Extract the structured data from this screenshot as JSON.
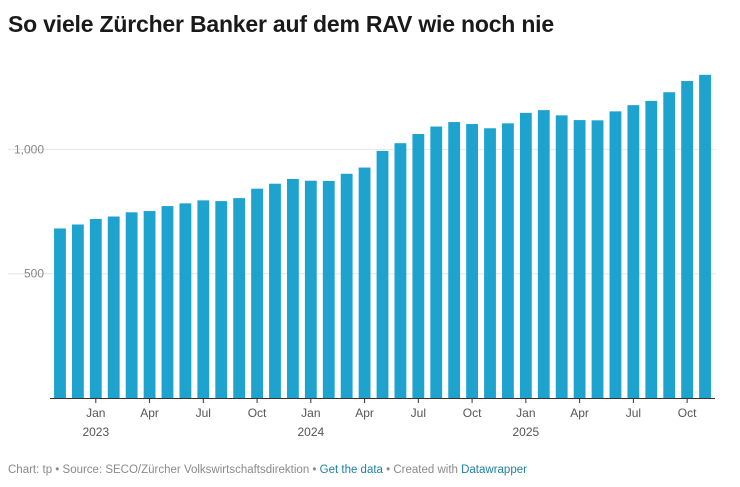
{
  "header": {
    "title": "So viele Zürcher Banker auf dem RAV wie noch nie"
  },
  "colors": {
    "bar": "#1ea3cf",
    "grid": "#e6e6e6",
    "baseline": "#333333",
    "link": "#1d81a2"
  },
  "chart_data": {
    "type": "bar",
    "title": "So viele Zürcher Banker auf dem RAV wie noch nie",
    "xlabel": "",
    "ylabel": "",
    "ylim": [
      0,
      1320
    ],
    "y_ticks": [
      {
        "value": 500,
        "label": "500"
      },
      {
        "value": 1000,
        "label": "1,000"
      }
    ],
    "x_ticks": [
      {
        "index": 2,
        "month": "Jan",
        "year": "2023"
      },
      {
        "index": 5,
        "month": "Apr",
        "year": ""
      },
      {
        "index": 8,
        "month": "Jul",
        "year": ""
      },
      {
        "index": 11,
        "month": "Oct",
        "year": ""
      },
      {
        "index": 14,
        "month": "Jan",
        "year": "2024"
      },
      {
        "index": 17,
        "month": "Apr",
        "year": ""
      },
      {
        "index": 20,
        "month": "Jul",
        "year": ""
      },
      {
        "index": 23,
        "month": "Oct",
        "year": ""
      },
      {
        "index": 26,
        "month": "Jan",
        "year": "2025"
      },
      {
        "index": 29,
        "month": "Apr",
        "year": ""
      },
      {
        "index": 32,
        "month": "Jul",
        "year": ""
      },
      {
        "index": 35,
        "month": "Oct",
        "year": ""
      }
    ],
    "categories": [
      "Nov 2022",
      "Dec 2022",
      "Jan 2023",
      "Feb 2023",
      "Mar 2023",
      "Apr 2023",
      "May 2023",
      "Jun 2023",
      "Jul 2023",
      "Aug 2023",
      "Sep 2023",
      "Oct 2023",
      "Nov 2023",
      "Dec 2023",
      "Jan 2024",
      "Feb 2024",
      "Mar 2024",
      "Apr 2024",
      "May 2024",
      "Jun 2024",
      "Jul 2024",
      "Aug 2024",
      "Sep 2024",
      "Oct 2024",
      "Nov 2024",
      "Dec 2024",
      "Jan 2025",
      "Feb 2025",
      "Mar 2025",
      "Apr 2025",
      "May 2025",
      "Jun 2025",
      "Jul 2025",
      "Aug 2025",
      "Sep 2025",
      "Oct 2025",
      "Nov 2025"
    ],
    "values": [
      682,
      698,
      720,
      730,
      747,
      752,
      772,
      783,
      795,
      792,
      804,
      842,
      862,
      881,
      874,
      873,
      902,
      927,
      994,
      1025,
      1062,
      1092,
      1110,
      1102,
      1085,
      1105,
      1147,
      1158,
      1137,
      1118,
      1117,
      1153,
      1178,
      1195,
      1230,
      1275,
      1300
    ]
  },
  "footer": {
    "prefix": "Chart: tp • Source: SECO/Zürcher Volkswirtschaftsdirektion • ",
    "get_data": "Get the data",
    "middle": " • Created with ",
    "tool": "Datawrapper"
  }
}
